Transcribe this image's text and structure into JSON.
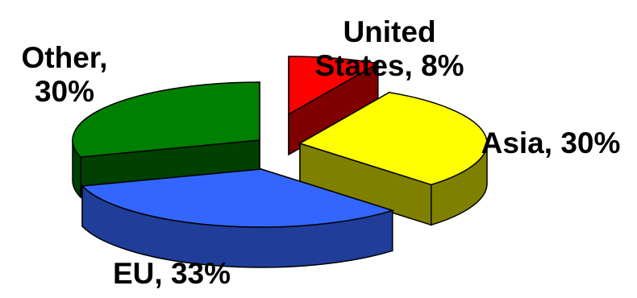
{
  "chart_data": {
    "type": "pie",
    "style": "3d-exploded",
    "title": "",
    "slices": [
      {
        "label": "United States",
        "value": 8,
        "label_text": [
          "United",
          "States, 8%"
        ],
        "color": "#ff0000",
        "side_color": "#800000"
      },
      {
        "label": "Asia",
        "value": 30,
        "label_text": [
          "Asia, 30%"
        ],
        "color": "#ffff00",
        "side_color": "#808000"
      },
      {
        "label": "EU",
        "value": 33,
        "label_text": [
          "EU, 33%"
        ],
        "color": "#3366ff",
        "side_color": "#1f3d99"
      },
      {
        "label": "Other",
        "value": 30,
        "label_text": [
          "Other,",
          "30%"
        ],
        "color": "#008000",
        "side_color": "#004000"
      }
    ],
    "legend": "none",
    "outline_color": "#000000"
  }
}
